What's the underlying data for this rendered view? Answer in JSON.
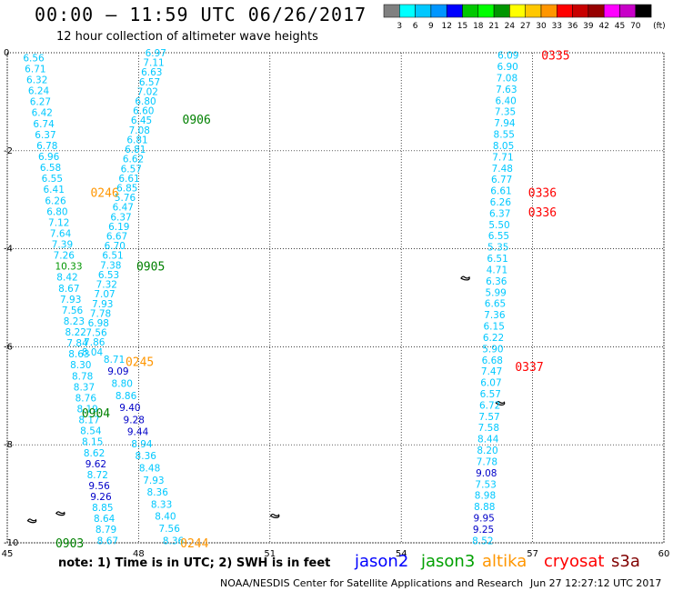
{
  "header": {
    "title": "00:00 – 11:59 UTC 06/26/2017",
    "subtitle": "12 hour collection of altimeter wave heights"
  },
  "colorbar": {
    "unit_label": "(ft)",
    "bins": [
      {
        "label": "",
        "color": "#808080"
      },
      {
        "label": "3",
        "color": "#00ffff"
      },
      {
        "label": "6",
        "color": "#00c8ff"
      },
      {
        "label": "9",
        "color": "#0096ff"
      },
      {
        "label": "12",
        "color": "#0000ff"
      },
      {
        "label": "15",
        "color": "#00c800"
      },
      {
        "label": "18",
        "color": "#00ff00"
      },
      {
        "label": "21",
        "color": "#009600"
      },
      {
        "label": "24",
        "color": "#ffff00"
      },
      {
        "label": "27",
        "color": "#ffc800"
      },
      {
        "label": "30",
        "color": "#ff9600"
      },
      {
        "label": "33",
        "color": "#ff0000"
      },
      {
        "label": "36",
        "color": "#c80000"
      },
      {
        "label": "39",
        "color": "#960000"
      },
      {
        "label": "42",
        "color": "#ff00ff"
      },
      {
        "label": "45",
        "color": "#c800c8"
      },
      {
        "label": "70",
        "color": "#000000"
      }
    ]
  },
  "map": {
    "lon_ticks": [
      "45",
      "48",
      "51",
      "54",
      "57",
      "60"
    ],
    "lat_ticks": [
      "0",
      "-2",
      "-4",
      "-6",
      "-8",
      "-10"
    ],
    "pass_labels": [
      {
        "text": "0335",
        "lon": 57.2,
        "lat": -0.05,
        "color": "#ff0000"
      },
      {
        "text": "0906",
        "lon": 49.0,
        "lat": -1.35,
        "color": "#008000"
      },
      {
        "text": "0246",
        "lon": 46.9,
        "lat": -2.85,
        "color": "#ff9600"
      },
      {
        "text": "0336",
        "lon": 56.9,
        "lat": -2.85,
        "color": "#ff0000"
      },
      {
        "text": "0336",
        "lon": 56.9,
        "lat": -3.25,
        "color": "#ff0000"
      },
      {
        "text": "0905",
        "lon": 47.95,
        "lat": -4.35,
        "color": "#008000"
      },
      {
        "text": "0245",
        "lon": 47.7,
        "lat": -6.3,
        "color": "#ff9600"
      },
      {
        "text": "0337",
        "lon": 56.6,
        "lat": -6.4,
        "color": "#ff0000"
      },
      {
        "text": "0904",
        "lon": 46.7,
        "lat": -7.35,
        "color": "#008000"
      },
      {
        "text": "0903",
        "lon": 46.1,
        "lat": -10.0,
        "color": "#008000"
      },
      {
        "text": "0244",
        "lon": 48.95,
        "lat": -10.0,
        "color": "#ff9600"
      }
    ],
    "tracks": [
      {
        "name": "track-a",
        "lon_start": 45.36,
        "lon_end": 47.05,
        "lat_start": -0.1,
        "lat_end": -9.95,
        "values": [
          "6.56",
          "6.71",
          "6.32",
          "6.24",
          "6.27",
          "6.42",
          "6.74",
          "6.37",
          "6.78",
          "6.96",
          "6.58",
          "6.55",
          "6.41",
          "6.26",
          "6.80",
          "7.12",
          "7.64",
          "7.39",
          "7.26",
          "10.33",
          "8.42",
          "8.67",
          "7.93",
          "7.56",
          "8.23",
          "8.22",
          "7.84",
          "8.63",
          "8.30",
          "8.78",
          "8.37",
          "8.76",
          "8.19",
          "8.17",
          "8.54",
          "8.15",
          "8.62",
          "9.62",
          "8.72",
          "9.56",
          "9.26",
          "8.85",
          "8.64",
          "8.79",
          "8.67"
        ],
        "colors": [
          "#00c8ff",
          "#00c8ff",
          "#00c8ff",
          "#00c8ff",
          "#00c8ff",
          "#00c8ff",
          "#00c8ff",
          "#00c8ff",
          "#00c8ff",
          "#00c8ff",
          "#00c8ff",
          "#00c8ff",
          "#00c8ff",
          "#00c8ff",
          "#00c8ff",
          "#00c8ff",
          "#00c8ff",
          "#00c8ff",
          "#00c8ff",
          "#009600",
          "#00c8ff",
          "#00c8ff",
          "#00c8ff",
          "#00c8ff",
          "#00c8ff",
          "#00c8ff",
          "#00c8ff",
          "#00c8ff",
          "#00c8ff",
          "#00c8ff",
          "#00c8ff",
          "#00c8ff",
          "#00c8ff",
          "#00c8ff",
          "#00c8ff",
          "#00c8ff",
          "#00c8ff",
          "#0000c8",
          "#00c8ff",
          "#0000c8",
          "#0000c8",
          "#00c8ff",
          "#00c8ff",
          "#00c8ff",
          "#00c8ff"
        ]
      },
      {
        "name": "track-b",
        "lon_start": 48.15,
        "lon_end": 46.7,
        "lat_start": 0.0,
        "lat_end": -6.1,
        "values": [
          "6.97",
          "7.11",
          "6.63",
          "6.57",
          "7.02",
          "6.80",
          "6.60",
          "6.45",
          "7.08",
          "6.81",
          "6.81",
          "6.62",
          "6.57",
          "6.61",
          "6.85",
          "5.76",
          "6.47",
          "6.37",
          "6.19",
          "6.67",
          "6.70",
          "6.51",
          "7.38",
          "6.53",
          "7.32",
          "7.07",
          "7.93",
          "7.78",
          "6.98",
          "7.56",
          "7.86",
          "8.04"
        ],
        "colors": [
          "#00c8ff",
          "#00c8ff",
          "#00c8ff",
          "#00c8ff",
          "#00c8ff",
          "#00c8ff",
          "#00c8ff",
          "#00c8ff",
          "#00c8ff",
          "#00c8ff",
          "#00c8ff",
          "#00c8ff",
          "#00c8ff",
          "#00c8ff",
          "#00c8ff",
          "#00c8ff",
          "#00c8ff",
          "#00c8ff",
          "#00c8ff",
          "#00c8ff",
          "#00c8ff",
          "#00c8ff",
          "#00c8ff",
          "#00c8ff",
          "#00c8ff",
          "#00c8ff",
          "#00c8ff",
          "#00c8ff",
          "#00c8ff",
          "#00c8ff",
          "#00c8ff",
          "#00c8ff"
        ]
      },
      {
        "name": "track-c",
        "lon_start": 47.2,
        "lon_end": 48.55,
        "lat_start": -6.25,
        "lat_end": -9.95,
        "values": [
          "8.71",
          "9.09",
          "8.80",
          "8.86",
          "9.40",
          "9.28",
          "9.44",
          "8.94",
          "8.36",
          "8.48",
          "7.93",
          "8.36",
          "8.33",
          "8.40",
          "7.56",
          "8.36"
        ],
        "colors": [
          "#00c8ff",
          "#0000c8",
          "#00c8ff",
          "#00c8ff",
          "#0000c8",
          "#0000c8",
          "#0000c8",
          "#00c8ff",
          "#00c8ff",
          "#00c8ff",
          "#00c8ff",
          "#00c8ff",
          "#00c8ff",
          "#00c8ff",
          "#00c8ff",
          "#00c8ff"
        ]
      },
      {
        "name": "track-d",
        "lon_start": 56.2,
        "lon_end": 55.62,
        "lat_start": -0.05,
        "lat_end": -9.95,
        "values": [
          "6.09",
          "6.90",
          "7.08",
          "7.63",
          "6.40",
          "7.35",
          "7.94",
          "8.55",
          "8.05",
          "7.71",
          "7.48",
          "6.77",
          "6.61",
          "6.26",
          "6.37",
          "5.50",
          "6.55",
          "5.35",
          "6.51",
          "4.71",
          "6.36",
          "5.99",
          "6.65",
          "7.36",
          "6.15",
          "6.22",
          "5.90",
          "6.68",
          "7.47",
          "6.07",
          "6.57",
          "6.72",
          "7.57",
          "7.58",
          "8.44",
          "8.20",
          "7.78",
          "9.08",
          "7.53",
          "8.98",
          "8.88",
          "9.95",
          "9.25",
          "8.52"
        ],
        "colors": [
          "#00c8ff",
          "#00c8ff",
          "#00c8ff",
          "#00c8ff",
          "#00c8ff",
          "#00c8ff",
          "#00c8ff",
          "#00c8ff",
          "#00c8ff",
          "#00c8ff",
          "#00c8ff",
          "#00c8ff",
          "#00c8ff",
          "#00c8ff",
          "#00c8ff",
          "#00c8ff",
          "#00c8ff",
          "#00c8ff",
          "#00c8ff",
          "#00c8ff",
          "#00c8ff",
          "#00c8ff",
          "#00c8ff",
          "#00c8ff",
          "#00c8ff",
          "#00c8ff",
          "#00c8ff",
          "#00c8ff",
          "#00c8ff",
          "#00c8ff",
          "#00c8ff",
          "#00c8ff",
          "#00c8ff",
          "#00c8ff",
          "#00c8ff",
          "#00c8ff",
          "#00c8ff",
          "#0000c8",
          "#00c8ff",
          "#00c8ff",
          "#00c8ff",
          "#0000c8",
          "#0000c8",
          "#00c8ff"
        ]
      }
    ],
    "islands": [
      {
        "name": "seychelles-group",
        "lon": 55.45,
        "lat": -4.6
      },
      {
        "name": "coetivy-island",
        "lon": 56.25,
        "lat": -7.15
      },
      {
        "name": "comoros-island",
        "lon": 45.55,
        "lat": -9.55
      },
      {
        "name": "aldabra-island",
        "lon": 46.2,
        "lat": -9.4
      },
      {
        "name": "farquhar-island",
        "lon": 51.1,
        "lat": -9.45
      }
    ]
  },
  "footer": {
    "note": "note: 1) Time is in UTC; 2) SWH is in feet",
    "satellites": [
      {
        "name": "jason2",
        "color": "#0000ff"
      },
      {
        "name": "jason3",
        "color": "#00a000"
      },
      {
        "name": "altika",
        "color": "#ff9600"
      },
      {
        "name": "cryosat",
        "color": "#ff0000"
      },
      {
        "name": "s3a",
        "color": "#800000"
      }
    ],
    "credit": "NOAA/NESDIS Center for Satellite Applications and Research",
    "timestamp": "Jun 27 12:27:12 UTC 2017"
  }
}
